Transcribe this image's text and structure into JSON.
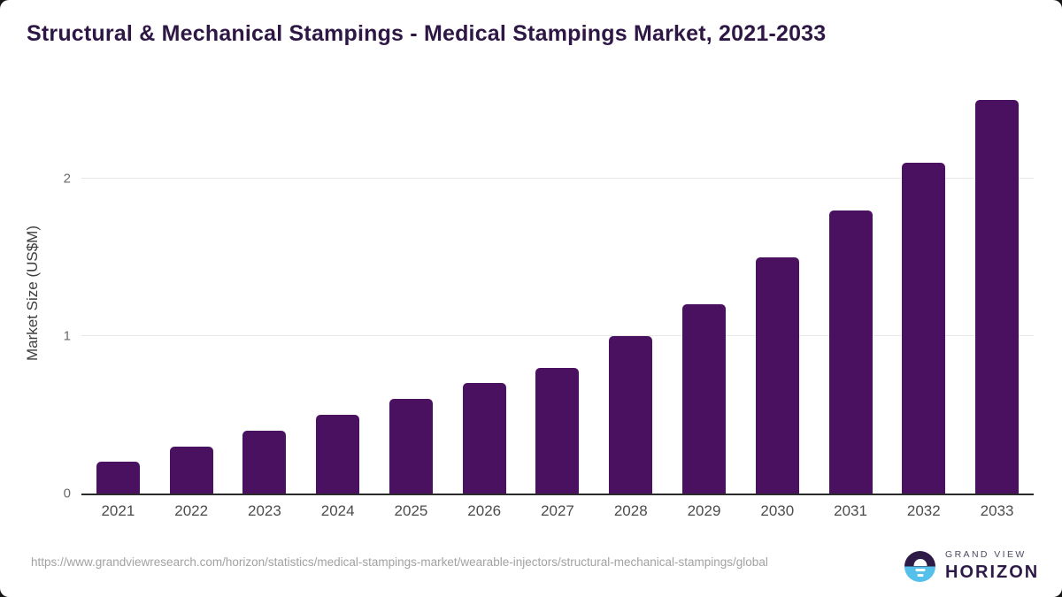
{
  "title": "Structural & Mechanical Stampings - Medical Stampings Market, 2021-2033",
  "colors": {
    "bar": "#4a1160",
    "title_text": "#2e1745",
    "gridline": "#e8e8e8",
    "axis_line": "#2b2b2b",
    "tick_text": "#6a6a6a",
    "logo_blue": "#55c1ea",
    "logo_purple": "#2e1a47"
  },
  "chart_data": {
    "type": "bar",
    "title": "Structural & Mechanical Stampings - Medical Stampings Market, 2021-2033",
    "categories": [
      "2021",
      "2022",
      "2023",
      "2024",
      "2025",
      "2026",
      "2027",
      "2028",
      "2029",
      "2030",
      "2031",
      "2032",
      "2033"
    ],
    "values": [
      0.2,
      0.3,
      0.4,
      0.5,
      0.6,
      0.7,
      0.8,
      1.0,
      1.2,
      1.5,
      1.8,
      2.1,
      2.5
    ],
    "xlabel": "",
    "ylabel": "Market Size (US$M)",
    "yticks": [
      0,
      1,
      2
    ],
    "ylim": [
      0,
      2.55
    ],
    "grid": "horizontal",
    "legend": "none",
    "bar_color": "#4a1160"
  },
  "footer": {
    "source_url": "https://www.grandviewresearch.com/horizon/statistics/medical-stampings-market/wearable-injectors/structural-mechanical-stampings/global",
    "logo": {
      "line1": "GRAND VIEW",
      "line2": "HORIZON",
      "icon": "horizon-sun-icon"
    }
  }
}
